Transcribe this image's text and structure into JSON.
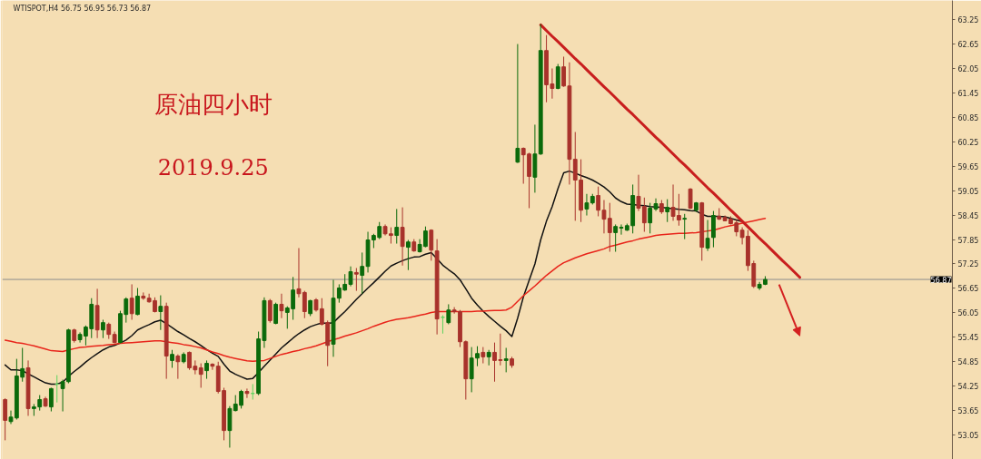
{
  "chart_data": {
    "type": "candlestick",
    "title": "原油四小时",
    "subtitle": "2019.9.25",
    "annotations": [
      "WTISPOT,H4  56.75 56.95 56.73 56.87"
    ],
    "tick_labels": "y",
    "ylim": [
      52.45,
      63.72
    ],
    "yticks": [
      53.05,
      53.65,
      54.25,
      54.85,
      55.45,
      56.05,
      56.65,
      57.25,
      57.85,
      58.45,
      59.05,
      59.65,
      60.25,
      60.85,
      61.45,
      62.05,
      62.65,
      63.25
    ],
    "ref_lines": [
      {
        "axis": "y",
        "value": 56.87,
        "label": "56.87",
        "color": "#8c8c8c"
      }
    ],
    "categories": [
      null,
      null,
      null,
      null,
      null,
      null,
      null,
      null,
      null,
      null,
      null,
      null,
      null,
      null,
      null,
      null,
      null,
      null,
      null,
      null,
      null,
      null,
      null,
      null,
      null,
      null,
      null,
      null,
      null,
      null,
      null,
      null,
      null,
      null,
      null,
      null,
      null,
      null,
      null,
      null,
      null,
      null,
      null,
      null,
      null,
      null,
      null,
      null,
      null,
      null,
      null,
      null,
      null,
      null,
      null,
      null,
      null,
      null,
      null,
      null,
      null,
      null,
      null,
      null,
      null,
      null,
      null,
      null,
      null,
      null,
      null,
      null,
      null,
      null,
      null,
      null,
      null,
      null,
      null,
      null,
      null,
      null,
      null,
      null,
      null,
      null,
      null,
      null,
      null,
      null,
      null,
      null,
      null,
      null,
      null,
      null,
      null,
      null,
      null,
      null,
      null,
      null,
      null,
      null,
      null,
      null,
      null,
      null,
      null,
      null,
      null,
      null,
      null,
      null,
      null,
      null,
      null,
      null,
      null,
      null,
      null,
      null,
      null,
      null,
      null,
      null,
      null,
      null,
      null,
      null,
      null,
      null,
      null,
      null,
      null,
      null,
      null,
      null,
      null,
      null,
      null,
      null,
      null,
      null,
      null,
      null,
      null,
      null,
      null,
      null,
      null,
      null,
      null,
      null,
      null,
      null,
      null,
      null,
      null,
      null,
      null,
      null,
      null,
      null,
      null
    ],
    "ohlc": [
      [
        53.92,
        53.95,
        52.92,
        53.41
      ],
      [
        53.38,
        53.65,
        53.32,
        53.49
      ],
      [
        53.47,
        54.92,
        53.43,
        54.5
      ],
      [
        54.47,
        55.19,
        54.36,
        54.68
      ],
      [
        54.7,
        54.88,
        53.52,
        53.7
      ],
      [
        53.7,
        53.81,
        53.52,
        53.74
      ],
      [
        53.74,
        54.03,
        53.65,
        53.92
      ],
      [
        53.94,
        53.99,
        53.74,
        53.76
      ],
      [
        53.74,
        54.21,
        53.63,
        54.19
      ],
      [
        54.3,
        54.52,
        53.85,
        54.3
      ],
      [
        54.19,
        54.41,
        53.63,
        54.36
      ],
      [
        54.36,
        55.66,
        54.32,
        55.63
      ],
      [
        55.63,
        55.66,
        55.32,
        55.37
      ],
      [
        55.39,
        55.57,
        55.32,
        55.52
      ],
      [
        55.48,
        55.74,
        55.25,
        55.7
      ],
      [
        55.66,
        56.41,
        55.43,
        56.26
      ],
      [
        56.23,
        56.64,
        55.43,
        55.63
      ],
      [
        55.63,
        55.88,
        55.43,
        55.81
      ],
      [
        55.77,
        55.81,
        55.41,
        55.52
      ],
      [
        55.52,
        55.59,
        55.3,
        55.32
      ],
      [
        55.32,
        56.1,
        55.3,
        56.03
      ],
      [
        56.01,
        56.43,
        55.81,
        56.39
      ],
      [
        56.41,
        56.75,
        55.88,
        56.03
      ],
      [
        56.01,
        56.66,
        55.99,
        56.46
      ],
      [
        56.46,
        56.55,
        56.37,
        56.41
      ],
      [
        56.41,
        56.52,
        56.3,
        56.32
      ],
      [
        56.35,
        56.43,
        56.06,
        56.08
      ],
      [
        56.08,
        56.48,
        55.63,
        56.21
      ],
      [
        56.21,
        56.3,
        54.43,
        54.99
      ],
      [
        54.88,
        55.14,
        54.7,
        55.03
      ],
      [
        54.99,
        55.03,
        54.43,
        54.85
      ],
      [
        54.85,
        55.08,
        54.81,
        55.03
      ],
      [
        55.08,
        55.1,
        54.65,
        54.7
      ],
      [
        54.74,
        54.88,
        54.54,
        54.65
      ],
      [
        54.7,
        54.81,
        54.21,
        54.54
      ],
      [
        54.63,
        54.88,
        54.43,
        54.81
      ],
      [
        54.79,
        54.81,
        54.65,
        54.74
      ],
      [
        54.74,
        54.85,
        54.07,
        54.12
      ],
      [
        54.14,
        54.21,
        52.92,
        53.16
      ],
      [
        53.16,
        53.76,
        52.74,
        53.7
      ],
      [
        53.65,
        54.03,
        53.63,
        53.81
      ],
      [
        53.78,
        54.16,
        53.7,
        54.12
      ],
      [
        54.12,
        54.19,
        53.96,
        54.07
      ],
      [
        54.07,
        54.3,
        53.92,
        54.07
      ],
      [
        54.07,
        55.59,
        54.03,
        55.41
      ],
      [
        55.37,
        56.43,
        55.19,
        56.35
      ],
      [
        56.35,
        56.39,
        55.81,
        55.86
      ],
      [
        55.79,
        56.3,
        55.77,
        56.26
      ],
      [
        56.26,
        56.52,
        55.92,
        56.1
      ],
      [
        56.06,
        56.21,
        55.66,
        56.17
      ],
      [
        56.15,
        56.93,
        55.88,
        56.61
      ],
      [
        56.64,
        57.64,
        56.43,
        56.52
      ],
      [
        56.55,
        56.59,
        55.92,
        56.08
      ],
      [
        56.03,
        56.37,
        55.97,
        56.35
      ],
      [
        56.37,
        56.41,
        56.08,
        56.12
      ],
      [
        56.15,
        56.41,
        55.74,
        55.77
      ],
      [
        55.81,
        55.86,
        54.74,
        55.25
      ],
      [
        55.28,
        56.86,
        54.97,
        56.41
      ],
      [
        56.41,
        56.75,
        56.3,
        56.66
      ],
      [
        56.61,
        57.0,
        56.59,
        56.75
      ],
      [
        56.75,
        57.19,
        56.7,
        57.06
      ],
      [
        57.04,
        57.15,
        56.59,
        57.0
      ],
      [
        56.97,
        57.53,
        56.52,
        57.19
      ],
      [
        57.19,
        58.04,
        57.04,
        57.84
      ],
      [
        57.84,
        57.99,
        57.64,
        57.95
      ],
      [
        57.9,
        58.28,
        57.86,
        58.17
      ],
      [
        58.17,
        58.22,
        57.95,
        57.99
      ],
      [
        57.99,
        58.15,
        57.75,
        57.95
      ],
      [
        57.95,
        58.6,
        57.75,
        58.15
      ],
      [
        58.15,
        58.64,
        57.21,
        57.68
      ],
      [
        57.66,
        57.84,
        57.1,
        57.79
      ],
      [
        57.79,
        57.86,
        57.55,
        57.57
      ],
      [
        57.55,
        57.86,
        57.53,
        57.73
      ],
      [
        57.68,
        58.17,
        57.66,
        58.06
      ],
      [
        58.08,
        58.1,
        57.33,
        57.59
      ],
      [
        57.57,
        57.86,
        55.52,
        55.9
      ],
      [
        55.94,
        55.99,
        55.54,
        55.94
      ],
      [
        55.81,
        56.26,
        55.77,
        56.12
      ],
      [
        56.12,
        56.19,
        56.03,
        56.08
      ],
      [
        56.08,
        56.12,
        55.21,
        55.34
      ],
      [
        55.34,
        55.37,
        53.92,
        54.43
      ],
      [
        54.43,
        55.21,
        54.1,
        54.94
      ],
      [
        54.94,
        55.23,
        54.74,
        55.05
      ],
      [
        55.08,
        55.21,
        54.81,
        54.97
      ],
      [
        54.97,
        55.14,
        54.76,
        55.08
      ],
      [
        55.08,
        55.32,
        54.36,
        54.88
      ],
      [
        54.9,
        55.54,
        54.76,
        54.88
      ],
      [
        54.88,
        55.19,
        54.59,
        54.92
      ],
      [
        54.92,
        54.97,
        54.7,
        54.76
      ],
      [
        59.75,
        62.65,
        59.73,
        60.09
      ],
      [
        60.09,
        60.11,
        59.22,
        59.93
      ],
      [
        59.95,
        59.98,
        58.62,
        59.4
      ],
      [
        59.38,
        60.67,
        59.0,
        59.95
      ],
      [
        59.95,
        63.14,
        59.93,
        62.49
      ],
      [
        62.49,
        62.87,
        61.22,
        61.65
      ],
      [
        61.67,
        62.05,
        61.31,
        61.56
      ],
      [
        61.56,
        62.16,
        61.54,
        62.09
      ],
      [
        62.09,
        62.34,
        61.6,
        61.62
      ],
      [
        61.62,
        62.2,
        59.2,
        59.82
      ],
      [
        59.82,
        60.49,
        58.31,
        59.31
      ],
      [
        59.31,
        59.82,
        58.28,
        58.57
      ],
      [
        58.6,
        58.97,
        58.44,
        58.75
      ],
      [
        58.75,
        58.97,
        58.71,
        58.91
      ],
      [
        58.93,
        59.15,
        58.42,
        58.57
      ],
      [
        58.57,
        58.82,
        58.0,
        58.35
      ],
      [
        58.37,
        58.75,
        57.55,
        58.02
      ],
      [
        58.02,
        58.22,
        57.55,
        58.17
      ],
      [
        58.13,
        58.22,
        57.97,
        58.15
      ],
      [
        58.08,
        58.24,
        58.06,
        58.19
      ],
      [
        58.19,
        59.2,
        58.0,
        58.93
      ],
      [
        58.91,
        59.44,
        58.55,
        58.62
      ],
      [
        58.66,
        58.88,
        58.04,
        58.26
      ],
      [
        58.26,
        58.75,
        58.0,
        58.62
      ],
      [
        58.6,
        58.86,
        58.55,
        58.73
      ],
      [
        58.73,
        58.82,
        58.48,
        58.53
      ],
      [
        58.53,
        58.84,
        58.28,
        58.64
      ],
      [
        58.64,
        59.2,
        58.31,
        58.42
      ],
      [
        58.44,
        58.97,
        58.19,
        58.33
      ],
      [
        58.35,
        58.48,
        57.86,
        58.37
      ],
      [
        59.09,
        59.11,
        58.6,
        58.62
      ],
      [
        58.57,
        58.77,
        58.53,
        58.75
      ],
      [
        58.75,
        58.77,
        57.33,
        57.66
      ],
      [
        57.64,
        58.33,
        57.57,
        57.88
      ],
      [
        57.9,
        58.55,
        57.66,
        58.44
      ],
      [
        58.42,
        58.62,
        58.33,
        58.35
      ],
      [
        58.39,
        58.44,
        58.31,
        58.31
      ],
      [
        58.35,
        58.42,
        58.22,
        58.24
      ],
      [
        58.26,
        58.33,
        57.93,
        58.04
      ],
      [
        58.08,
        58.15,
        57.73,
        57.9
      ],
      [
        57.93,
        58.08,
        57.08,
        57.21
      ],
      [
        57.26,
        57.33,
        56.66,
        56.7
      ],
      [
        56.66,
        56.81,
        56.61,
        56.75
      ],
      [
        56.75,
        56.95,
        56.73,
        56.87
      ],
      null,
      null,
      null,
      null,
      null,
      null,
      null,
      null,
      null,
      null,
      null,
      null,
      null,
      null,
      null,
      null,
      null,
      null,
      null,
      null,
      null,
      null,
      null,
      null,
      null,
      null,
      null,
      null,
      null,
      null,
      null,
      null
    ],
    "colors": [
      "#a8322b",
      "#0b6a0b",
      "#0b6a0b",
      "#0b6a0b",
      "#a8322b",
      "#0b6a0b",
      "#0b6a0b",
      "#a8322b",
      "#0b6a0b",
      "#5fd35f",
      "#0b6a0b",
      "#0b6a0b",
      "#a8322b",
      "#0b6a0b",
      "#0b6a0b",
      "#0b6a0b",
      "#a8322b",
      "#0b6a0b",
      "#a8322b",
      "#a8322b",
      "#0b6a0b",
      "#0b6a0b",
      "#a8322b",
      "#0b6a0b",
      "#a8322b",
      "#a8322b",
      "#a8322b",
      "#0b6a0b",
      "#a8322b",
      "#0b6a0b",
      "#a8322b",
      "#0b6a0b",
      "#a8322b",
      "#a8322b",
      "#a8322b",
      "#0b6a0b",
      "#a8322b",
      "#a8322b",
      "#a8322b",
      "#0b6a0b",
      "#0b6a0b",
      "#0b6a0b",
      "#a8322b",
      "#5fd35f",
      "#0b6a0b",
      "#0b6a0b",
      "#a8322b",
      "#0b6a0b",
      "#a8322b",
      "#0b6a0b",
      "#0b6a0b",
      "#a8322b",
      "#a8322b",
      "#0b6a0b",
      "#a8322b",
      "#a8322b",
      "#a8322b",
      "#0b6a0b",
      "#0b6a0b",
      "#0b6a0b",
      "#0b6a0b",
      "#a8322b",
      "#0b6a0b",
      "#0b6a0b",
      "#0b6a0b",
      "#0b6a0b",
      "#a8322b",
      "#a8322b",
      "#0b6a0b",
      "#a8322b",
      "#0b6a0b",
      "#a8322b",
      "#0b6a0b",
      "#0b6a0b",
      "#a8322b",
      "#a8322b",
      "#5fd35f",
      "#0b6a0b",
      "#a8322b",
      "#a8322b",
      "#a8322b",
      "#0b6a0b",
      "#0b6a0b",
      "#a8322b",
      "#0b6a0b",
      "#a8322b",
      "#a8322b",
      "#0b6a0b",
      "#a8322b",
      "#0b6a0b",
      "#a8322b",
      "#a8322b",
      "#0b6a0b",
      "#0b6a0b",
      "#a8322b",
      "#a8322b",
      "#0b6a0b",
      "#a8322b",
      "#a8322b",
      "#a8322b",
      "#a8322b",
      "#0b6a0b",
      "#0b6a0b",
      "#a8322b",
      "#a8322b",
      "#a8322b",
      "#0b6a0b",
      "#0b6a0b",
      "#0b6a0b",
      "#0b6a0b",
      "#a8322b",
      "#a8322b",
      "#0b6a0b",
      "#0b6a0b",
      "#a8322b",
      "#0b6a0b",
      "#a8322b",
      "#a8322b",
      "#0b6a0b",
      "#a8322b",
      "#0b6a0b",
      "#a8322b",
      "#0b6a0b",
      "#0b6a0b",
      "#a8322b",
      "#a8322b",
      "#a8322b",
      "#a8322b",
      "#a8322b",
      "#a8322b",
      "#a8322b",
      "#0b6a0b",
      "#0b6a0b",
      null,
      null,
      null,
      null,
      null,
      null,
      null,
      null,
      null,
      null,
      null,
      null,
      null,
      null,
      null,
      null,
      null,
      null,
      null,
      null,
      null,
      null,
      null,
      null,
      null,
      null,
      null,
      null,
      null,
      null,
      null,
      null
    ],
    "series": [
      {
        "type": "line",
        "color": "#111111",
        "values": [
          54.77,
          54.65,
          54.65,
          54.63,
          54.55,
          54.48,
          54.4,
          54.33,
          54.3,
          54.3,
          54.35,
          54.49,
          54.61,
          54.72,
          54.84,
          54.95,
          55.05,
          55.14,
          55.21,
          55.25,
          55.31,
          55.38,
          55.49,
          55.63,
          55.7,
          55.76,
          55.83,
          55.87,
          55.78,
          55.69,
          55.59,
          55.51,
          55.42,
          55.34,
          55.25,
          55.15,
          55.06,
          54.98,
          54.79,
          54.62,
          54.54,
          54.48,
          54.42,
          54.44,
          54.58,
          54.74,
          54.89,
          55.04,
          55.19,
          55.31,
          55.43,
          55.54,
          55.63,
          55.71,
          55.76,
          55.8,
          55.79,
          55.81,
          55.95,
          56.08,
          56.23,
          56.38,
          56.52,
          56.66,
          56.79,
          56.93,
          57.07,
          57.2,
          57.27,
          57.33,
          57.38,
          57.42,
          57.43,
          57.49,
          57.53,
          57.38,
          57.22,
          57.11,
          57.01,
          56.86,
          56.64,
          56.41,
          56.24,
          56.09,
          55.96,
          55.84,
          55.72,
          55.61,
          55.47,
          55.92,
          56.44,
          56.85,
          57.25,
          57.84,
          58.3,
          58.66,
          59.1,
          59.49,
          59.53,
          59.48,
          59.42,
          59.37,
          59.31,
          59.23,
          59.14,
          59.02,
          58.87,
          58.78,
          58.72,
          58.71,
          58.69,
          58.68,
          58.66,
          58.65,
          58.64,
          58.62,
          58.61,
          58.59,
          58.58,
          58.56,
          58.55,
          58.47,
          58.42,
          58.42,
          58.42,
          58.41,
          58.37,
          58.33,
          58.29,
          null,
          null,
          null,
          null,
          null,
          null,
          null,
          null,
          null,
          null,
          null,
          null,
          null,
          null,
          null,
          null,
          null,
          null,
          null,
          null,
          null,
          null,
          null,
          null,
          null,
          null,
          null,
          null,
          null,
          null,
          null,
          null,
          null,
          null,
          null,
          null
        ]
      },
      {
        "type": "line",
        "color": "#e8241a",
        "values": [
          55.38,
          55.35,
          55.32,
          55.3,
          55.27,
          55.24,
          55.2,
          55.16,
          55.12,
          55.11,
          55.1,
          55.14,
          55.17,
          55.2,
          55.21,
          55.23,
          55.24,
          55.25,
          55.27,
          55.28,
          55.3,
          55.31,
          55.32,
          55.33,
          55.34,
          55.35,
          55.36,
          55.36,
          55.34,
          55.32,
          55.3,
          55.27,
          55.25,
          55.22,
          55.19,
          55.14,
          55.09,
          55.05,
          55.0,
          54.96,
          54.93,
          54.9,
          54.87,
          54.86,
          54.87,
          54.88,
          54.93,
          54.98,
          55.03,
          55.06,
          55.1,
          55.13,
          55.17,
          55.2,
          55.24,
          55.29,
          55.34,
          55.39,
          55.43,
          55.48,
          55.52,
          55.56,
          55.61,
          55.66,
          55.72,
          55.77,
          55.82,
          55.86,
          55.89,
          55.91,
          55.93,
          55.96,
          55.99,
          56.02,
          56.06,
          56.08,
          56.08,
          56.08,
          56.08,
          56.08,
          56.08,
          56.08,
          56.09,
          56.09,
          56.1,
          56.11,
          56.11,
          56.12,
          56.19,
          56.33,
          56.47,
          56.59,
          56.71,
          56.84,
          56.97,
          57.08,
          57.19,
          57.28,
          57.34,
          57.4,
          57.45,
          57.5,
          57.54,
          57.58,
          57.62,
          57.68,
          57.71,
          57.75,
          57.79,
          57.82,
          57.86,
          57.89,
          57.92,
          57.95,
          57.97,
          57.98,
          57.99,
          58.0,
          58.0,
          58.01,
          58.02,
          58.04,
          58.06,
          58.08,
          58.12,
          58.16,
          58.19,
          58.22,
          58.25,
          58.28,
          58.31,
          58.34,
          58.37,
          null,
          null,
          null,
          null,
          null,
          null,
          null,
          null,
          null,
          null,
          null,
          null,
          null,
          null,
          null,
          null,
          null,
          null,
          null,
          null,
          null,
          null,
          null,
          null,
          null,
          null,
          null,
          null,
          null,
          null,
          null,
          null
        ]
      },
      {
        "type": "line",
        "color": "#c81e1e",
        "values": [
          null,
          null,
          null,
          null,
          null,
          null,
          null,
          null,
          null,
          null,
          null,
          null,
          null,
          null,
          null,
          null,
          null,
          null,
          null,
          null,
          null,
          null,
          null,
          null,
          null,
          null,
          null,
          null,
          null,
          null,
          null,
          null,
          null,
          null,
          null,
          null,
          null,
          null,
          null,
          null,
          null,
          null,
          null,
          null,
          null,
          null,
          null,
          null,
          null,
          null,
          null,
          null,
          null,
          null,
          null,
          null,
          null,
          null,
          null,
          null,
          null,
          null,
          null,
          null,
          null,
          null,
          null,
          null,
          null,
          null,
          null,
          null,
          null,
          null,
          null,
          null,
          null,
          null,
          null,
          null,
          null,
          null,
          null,
          null,
          null,
          null,
          null,
          null,
          null,
          null,
          null,
          null,
          null,
          63.12,
          62.98,
          62.84,
          62.71,
          62.57,
          62.43,
          62.29,
          62.16,
          62.02,
          61.88,
          61.74,
          61.6,
          61.47,
          61.33,
          61.19,
          61.05,
          60.92,
          60.78,
          60.64,
          60.5,
          60.36,
          60.23,
          60.09,
          59.95,
          59.81,
          59.68,
          59.54,
          59.4,
          59.26,
          59.12,
          58.99,
          58.85,
          58.71,
          58.57,
          58.44,
          58.3,
          58.16,
          58.02,
          57.88,
          57.75,
          57.61,
          57.47,
          57.33,
          57.2,
          57.06,
          56.92,
          null,
          null,
          null,
          null,
          null,
          null,
          null,
          null,
          null,
          null,
          null,
          null,
          null,
          null,
          null,
          null,
          null,
          null,
          null,
          null,
          null,
          null,
          null,
          null,
          null,
          null
        ]
      }
    ]
  }
}
